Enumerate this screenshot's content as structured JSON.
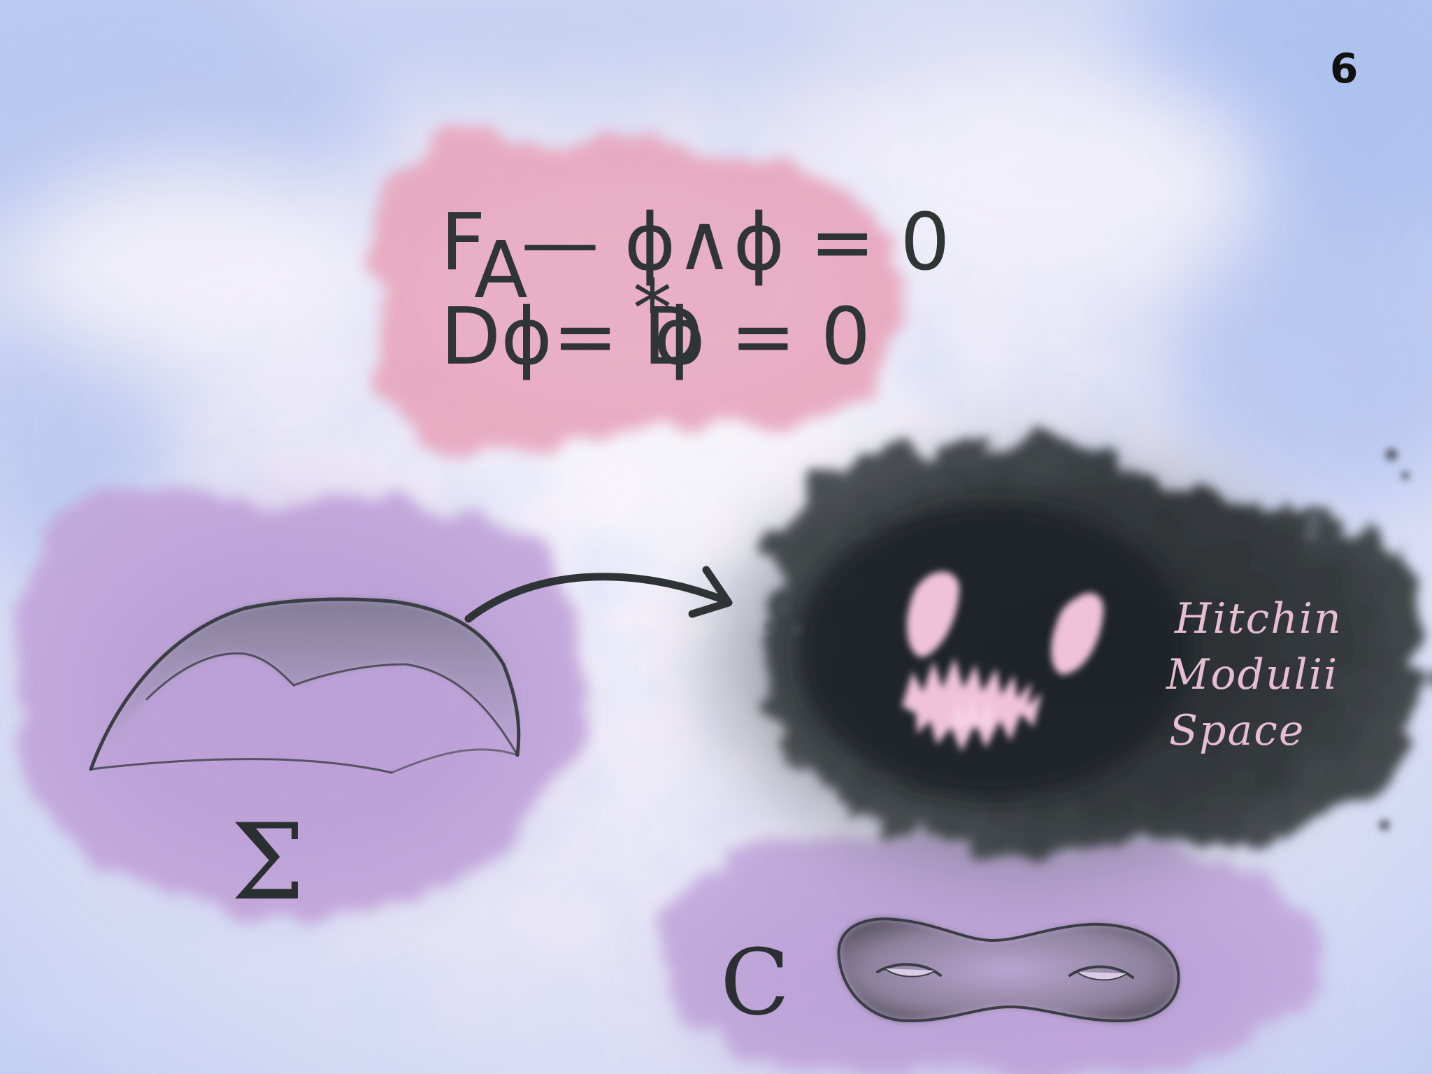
{
  "page_number": "6",
  "equations": {
    "line1_a": "F",
    "line1_sub": "A",
    "line1_b": "— ϕ∧ϕ = 0",
    "line2_a": "Dϕ= D",
    "line2_sup": "*",
    "line2_b": "ϕ = 0"
  },
  "labels": {
    "sigma": "Σ",
    "c": "C",
    "moduli": [
      "Hitchin",
      "Modulii",
      "Space"
    ]
  },
  "colors": {
    "sky_blue": "#b7c7ee",
    "sky_white": "#f1eef8",
    "pink_cloud": "#e7a9bf",
    "purple_cloud": "#c3a9dc",
    "dark_cloud": "#3a3f42",
    "monster_pink": "#efc2d9",
    "ink": "#2f3434"
  },
  "icons": {
    "surface": "curved-surface-sigma",
    "arrow": "curved-arrow-right",
    "monster": "shadow-monster-face",
    "torus": "genus-two-surface"
  }
}
